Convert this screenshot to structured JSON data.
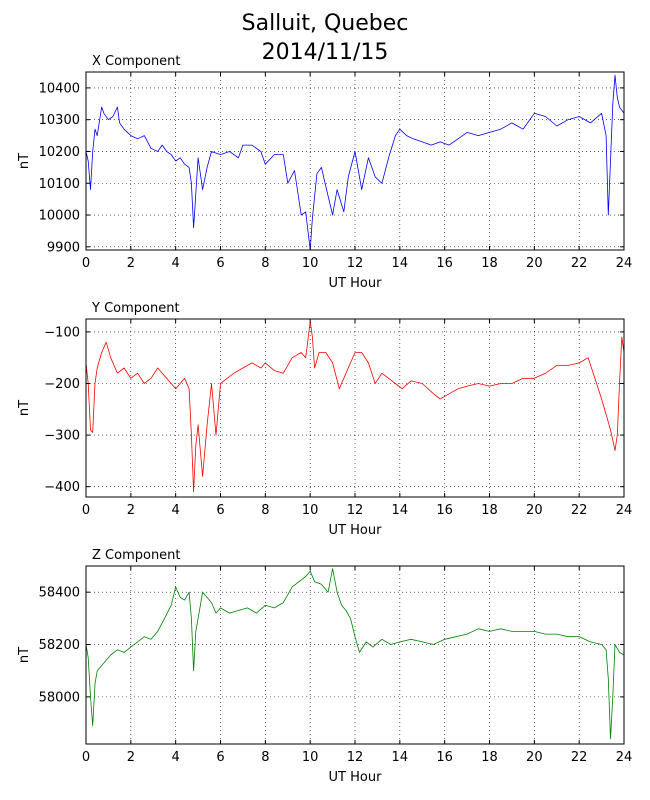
{
  "figure": {
    "title_line1": "Salluit, Quebec",
    "title_line2": "2014/11/15"
  },
  "colors": {
    "x": "#0000ff",
    "y": "#ff0000",
    "z": "#008000"
  },
  "chart_data": [
    {
      "type": "line",
      "title": "X Component",
      "xlabel": "UT Hour",
      "ylabel": "nT",
      "xlim": [
        0,
        24
      ],
      "ylim": [
        9890,
        10450
      ],
      "xticks": [
        0,
        2,
        4,
        6,
        8,
        10,
        12,
        14,
        16,
        18,
        20,
        22,
        24
      ],
      "yticks": [
        9900,
        10000,
        10100,
        10200,
        10300,
        10400
      ],
      "grid": true,
      "color": "#0000ff",
      "x": [
        0,
        0.1,
        0.2,
        0.3,
        0.4,
        0.5,
        0.7,
        0.8,
        1.0,
        1.2,
        1.4,
        1.5,
        1.7,
        2.0,
        2.3,
        2.6,
        2.9,
        3.2,
        3.4,
        3.6,
        3.8,
        4.0,
        4.2,
        4.4,
        4.6,
        4.7,
        4.8,
        5.0,
        5.2,
        5.4,
        5.6,
        6.0,
        6.4,
        6.8,
        7.0,
        7.4,
        7.8,
        8.0,
        8.4,
        8.8,
        9.0,
        9.3,
        9.6,
        9.8,
        10.0,
        10.1,
        10.3,
        10.5,
        10.8,
        11.0,
        11.2,
        11.5,
        11.7,
        12.0,
        12.3,
        12.6,
        12.9,
        13.2,
        13.5,
        13.8,
        14.0,
        14.3,
        14.6,
        15.0,
        15.4,
        15.8,
        16.2,
        16.6,
        17.0,
        17.5,
        18.0,
        18.5,
        19.0,
        19.5,
        20.0,
        20.5,
        21.0,
        21.5,
        22.0,
        22.5,
        23.0,
        23.2,
        23.3,
        23.4,
        23.5,
        23.6,
        23.7,
        23.8,
        24.0
      ],
      "values": [
        10200,
        10170,
        10080,
        10200,
        10270,
        10250,
        10340,
        10320,
        10300,
        10310,
        10340,
        10290,
        10270,
        10250,
        10240,
        10250,
        10210,
        10200,
        10220,
        10200,
        10190,
        10170,
        10180,
        10160,
        10150,
        10100,
        9960,
        10180,
        10080,
        10150,
        10200,
        10190,
        10200,
        10180,
        10220,
        10220,
        10200,
        10160,
        10190,
        10190,
        10100,
        10140,
        10000,
        10010,
        9890,
        9990,
        10130,
        10150,
        10060,
        10000,
        10080,
        10010,
        10120,
        10200,
        10080,
        10180,
        10120,
        10100,
        10180,
        10250,
        10270,
        10250,
        10240,
        10230,
        10220,
        10230,
        10220,
        10240,
        10260,
        10250,
        10260,
        10270,
        10290,
        10270,
        10320,
        10310,
        10280,
        10300,
        10310,
        10290,
        10320,
        10250,
        10000,
        10170,
        10350,
        10440,
        10370,
        10340,
        10320
      ]
    },
    {
      "type": "line",
      "title": "Y Component",
      "xlabel": "UT Hour",
      "ylabel": "nT",
      "xlim": [
        0,
        24
      ],
      "ylim": [
        -420,
        -75
      ],
      "xticks": [
        0,
        2,
        4,
        6,
        8,
        10,
        12,
        14,
        16,
        18,
        20,
        22,
        24
      ],
      "yticks": [
        -100,
        -200,
        -300,
        -400
      ],
      "grid": true,
      "color": "#ff0000",
      "x": [
        0,
        0.1,
        0.2,
        0.3,
        0.4,
        0.5,
        0.7,
        0.9,
        1.1,
        1.4,
        1.7,
        2.0,
        2.3,
        2.6,
        2.9,
        3.2,
        3.5,
        3.8,
        4.0,
        4.2,
        4.4,
        4.6,
        4.7,
        4.8,
        4.9,
        5.0,
        5.2,
        5.4,
        5.6,
        5.8,
        6.0,
        6.3,
        6.6,
        7.0,
        7.4,
        7.8,
        8.0,
        8.4,
        8.8,
        9.2,
        9.6,
        9.8,
        10.0,
        10.1,
        10.2,
        10.4,
        10.7,
        11.0,
        11.3,
        11.6,
        12.0,
        12.3,
        12.6,
        12.9,
        13.2,
        13.5,
        13.8,
        14.1,
        14.5,
        15.0,
        15.5,
        15.8,
        16.2,
        16.6,
        17.0,
        17.5,
        18.0,
        18.5,
        19.0,
        19.5,
        20.0,
        20.5,
        21.0,
        21.5,
        22.0,
        22.4,
        22.7,
        23.0,
        23.2,
        23.4,
        23.5,
        23.6,
        23.7,
        23.8,
        23.9,
        24.0
      ],
      "values": [
        -160,
        -200,
        -290,
        -295,
        -200,
        -170,
        -140,
        -120,
        -150,
        -180,
        -170,
        -190,
        -180,
        -200,
        -190,
        -170,
        -185,
        -200,
        -210,
        -200,
        -190,
        -210,
        -300,
        -410,
        -320,
        -280,
        -380,
        -280,
        -200,
        -300,
        -200,
        -190,
        -180,
        -170,
        -160,
        -170,
        -160,
        -175,
        -180,
        -150,
        -140,
        -150,
        -80,
        -110,
        -170,
        -140,
        -140,
        -160,
        -210,
        -180,
        -140,
        -140,
        -160,
        -200,
        -180,
        -190,
        -200,
        -210,
        -195,
        -200,
        -220,
        -230,
        -220,
        -210,
        -205,
        -200,
        -205,
        -200,
        -200,
        -190,
        -190,
        -180,
        -165,
        -165,
        -160,
        -150,
        -190,
        -230,
        -260,
        -290,
        -310,
        -330,
        -300,
        -200,
        -110,
        -140
      ]
    },
    {
      "type": "line",
      "title": "Z Component",
      "xlabel": "UT Hour",
      "ylabel": "nT",
      "xlim": [
        0,
        24
      ],
      "ylim": [
        57820,
        58500
      ],
      "xticks": [
        0,
        2,
        4,
        6,
        8,
        10,
        12,
        14,
        16,
        18,
        20,
        22,
        24
      ],
      "yticks": [
        58400,
        58200,
        58000
      ],
      "grid": true,
      "color": "#008000",
      "x": [
        0,
        0.1,
        0.2,
        0.3,
        0.4,
        0.5,
        0.7,
        0.9,
        1.1,
        1.4,
        1.7,
        2.0,
        2.3,
        2.6,
        2.9,
        3.2,
        3.5,
        3.8,
        4.0,
        4.2,
        4.4,
        4.6,
        4.7,
        4.8,
        4.9,
        5.0,
        5.2,
        5.4,
        5.6,
        5.8,
        6.0,
        6.4,
        6.8,
        7.2,
        7.6,
        8.0,
        8.4,
        8.8,
        9.2,
        9.5,
        9.8,
        10.0,
        10.2,
        10.5,
        10.8,
        11.0,
        11.2,
        11.4,
        11.6,
        11.8,
        12.0,
        12.2,
        12.5,
        12.8,
        13.2,
        13.6,
        14.0,
        14.5,
        15.0,
        15.5,
        16.0,
        16.5,
        17.0,
        17.5,
        18.0,
        18.5,
        19.0,
        19.5,
        20.0,
        20.5,
        21.0,
        21.5,
        22.0,
        22.5,
        23.0,
        23.2,
        23.3,
        23.4,
        23.5,
        23.6,
        23.8,
        24.0
      ],
      "values": [
        58200,
        58150,
        58000,
        57890,
        58050,
        58100,
        58120,
        58140,
        58160,
        58180,
        58170,
        58190,
        58210,
        58230,
        58220,
        58250,
        58300,
        58350,
        58420,
        58380,
        58370,
        58400,
        58300,
        58100,
        58250,
        58300,
        58400,
        58380,
        58360,
        58320,
        58340,
        58320,
        58330,
        58340,
        58320,
        58350,
        58340,
        58360,
        58420,
        58440,
        58460,
        58480,
        58440,
        58430,
        58400,
        58490,
        58400,
        58350,
        58330,
        58300,
        58230,
        58170,
        58210,
        58190,
        58220,
        58200,
        58210,
        58220,
        58210,
        58200,
        58220,
        58230,
        58240,
        58260,
        58250,
        58260,
        58250,
        58250,
        58250,
        58240,
        58240,
        58230,
        58230,
        58210,
        58200,
        58180,
        58070,
        57840,
        58000,
        58200,
        58170,
        58160
      ]
    }
  ]
}
